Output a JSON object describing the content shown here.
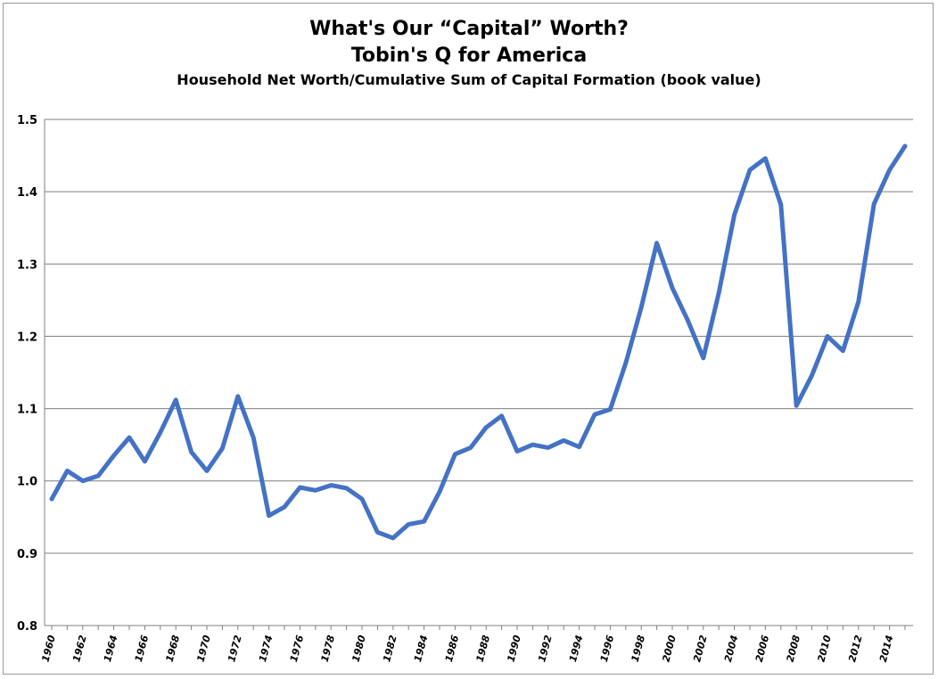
{
  "chart_data": {
    "type": "line",
    "title": "What's Our “Capital” Worth?",
    "subtitle": "Tobin's Q for America",
    "subtitle2": "Household Net Worth/Cumulative Sum of Capital Formation (book value)",
    "xlabel": "",
    "ylabel": "",
    "ylim": [
      0.8,
      1.5
    ],
    "yticks": [
      "0.8",
      "0.9",
      "1.0",
      "1.1",
      "1.2",
      "1.3",
      "1.4",
      "1.5"
    ],
    "xticks": [
      "1960",
      "1962",
      "1964",
      "1966",
      "1968",
      "1970",
      "1972",
      "1974",
      "1976",
      "1978",
      "1980",
      "1982",
      "1984",
      "1986",
      "1988",
      "1990",
      "1992",
      "1994",
      "1996",
      "1998",
      "2000",
      "2002",
      "2004",
      "2006",
      "2008",
      "2010",
      "2012",
      "2014"
    ],
    "grid": true,
    "legend": "none",
    "series_color": "#4472c4",
    "x": [
      1960,
      1961,
      1962,
      1963,
      1964,
      1965,
      1966,
      1967,
      1968,
      1969,
      1970,
      1971,
      1972,
      1973,
      1974,
      1975,
      1976,
      1977,
      1978,
      1979,
      1980,
      1981,
      1982,
      1983,
      1984,
      1985,
      1986,
      1987,
      1988,
      1989,
      1990,
      1991,
      1992,
      1993,
      1994,
      1995,
      1996,
      1997,
      1998,
      1999,
      2000,
      2001,
      2002,
      2003,
      2004,
      2005,
      2006,
      2007,
      2008,
      2009,
      2010,
      2011,
      2012,
      2013,
      2014,
      2015
    ],
    "values": [
      0.975,
      1.014,
      1.0,
      1.007,
      1.035,
      1.06,
      1.027,
      1.067,
      1.112,
      1.04,
      1.014,
      1.045,
      1.117,
      1.06,
      0.952,
      0.964,
      0.991,
      0.987,
      0.994,
      0.99,
      0.975,
      0.929,
      0.921,
      0.94,
      0.944,
      0.985,
      1.037,
      1.046,
      1.074,
      1.09,
      1.041,
      1.05,
      1.046,
      1.056,
      1.047,
      1.092,
      1.099,
      1.163,
      1.24,
      1.329,
      1.267,
      1.222,
      1.17,
      1.26,
      1.368,
      1.43,
      1.446,
      1.382,
      1.104,
      1.146,
      1.2,
      1.18,
      1.248,
      1.383,
      1.43,
      1.463
    ]
  }
}
